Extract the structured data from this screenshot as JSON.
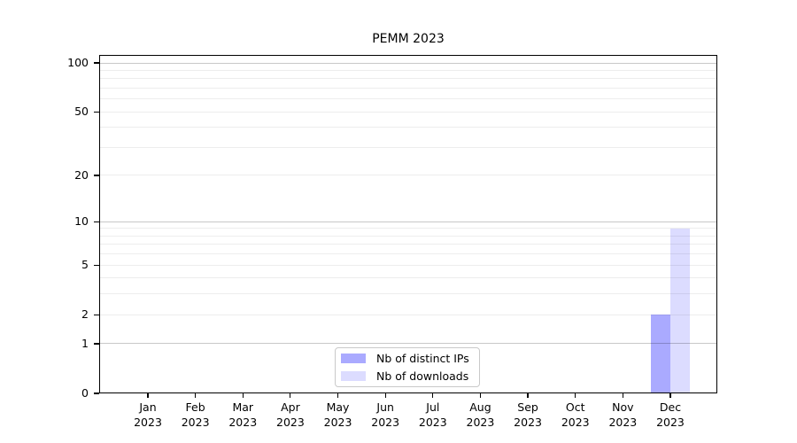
{
  "chart_data": {
    "type": "bar",
    "title": "PEMM 2023",
    "categories": [
      "Jan",
      "Feb",
      "Mar",
      "Apr",
      "May",
      "Jun",
      "Jul",
      "Aug",
      "Sep",
      "Oct",
      "Nov",
      "Dec"
    ],
    "x_sublabel": "2023",
    "series": [
      {
        "name": "Nb of distinct IPs",
        "color": "#aaaaff",
        "values": [
          0,
          0,
          0,
          0,
          0,
          0,
          0,
          0,
          0,
          0,
          0,
          2
        ]
      },
      {
        "name": "Nb of downloads",
        "color": "#dcdcff",
        "values": [
          0,
          0,
          0,
          0,
          0,
          0,
          0,
          0,
          0,
          0,
          0,
          9
        ]
      }
    ],
    "yscale": "log10(value+1)",
    "ylim": [
      0,
      100
    ],
    "yticks": [
      100,
      50,
      20,
      10,
      5,
      2,
      1,
      0
    ],
    "grid": {
      "major": [
        1,
        10,
        100
      ],
      "minor": [
        2,
        3,
        4,
        5,
        6,
        7,
        8,
        9,
        20,
        30,
        40,
        50,
        60,
        70,
        80,
        90
      ],
      "major_color": "#c8c8c8",
      "minor_color": "#ededed"
    },
    "legend_position": "bottom-center",
    "axis_color": "#000000",
    "background": "#ffffff"
  }
}
